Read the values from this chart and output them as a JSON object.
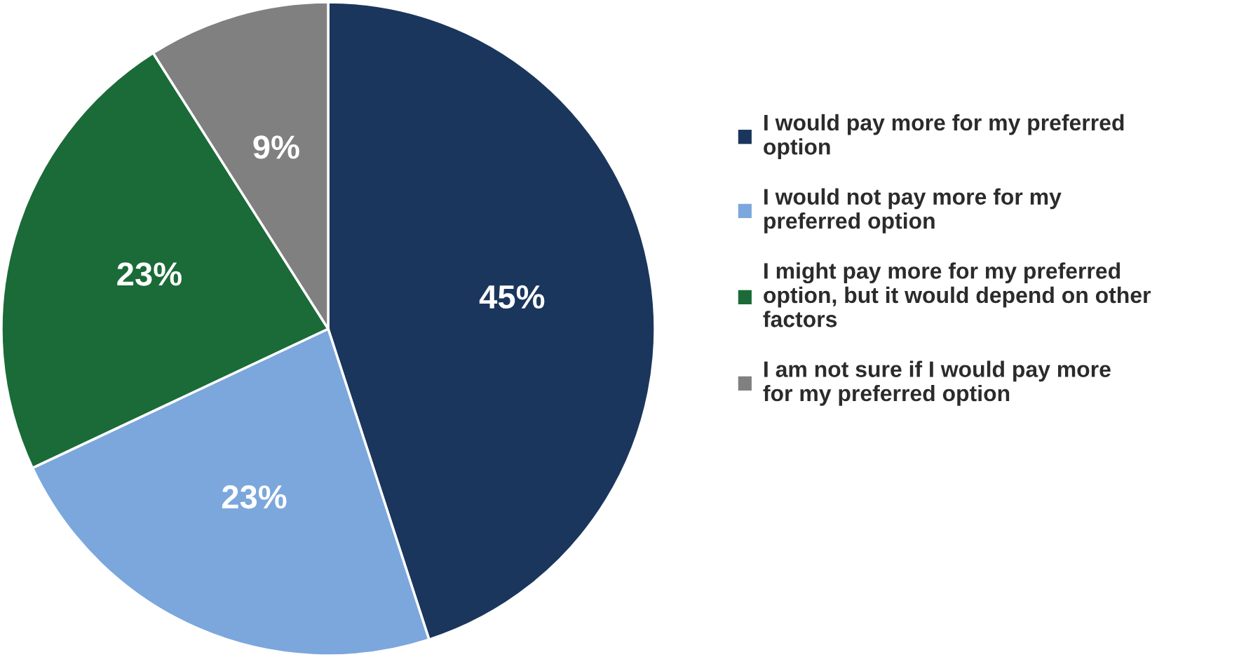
{
  "chart_data": {
    "type": "pie",
    "categories": [
      "I would pay more for my preferred option",
      "I would not pay more for my preferred option",
      "I might pay more for my preferred option, but it would depend on other factors",
      "I am not sure if I would pay more for my preferred option"
    ],
    "values": [
      45,
      23,
      23,
      9
    ],
    "colors": [
      "#1b365d",
      "#7ba7dc",
      "#1a6b37",
      "#808080"
    ],
    "value_labels": [
      "45%",
      "23%",
      "23%",
      "9%"
    ],
    "legend": "right"
  }
}
